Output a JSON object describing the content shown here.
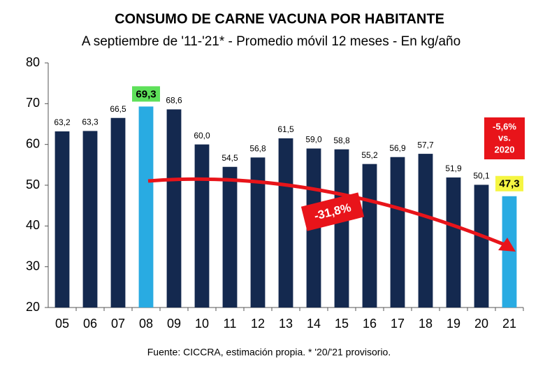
{
  "chart_data": {
    "type": "bar",
    "title": "CONSUMO DE CARNE VACUNA POR HABITANTE",
    "subtitle": "A septiembre de '11-'21* - Promedio móvil 12 meses -  En kg/año",
    "categories": [
      "05",
      "06",
      "07",
      "08",
      "09",
      "10",
      "11",
      "12",
      "13",
      "14",
      "15",
      "16",
      "17",
      "18",
      "19",
      "20",
      "21"
    ],
    "values": [
      63.2,
      63.3,
      66.5,
      69.3,
      68.6,
      60.0,
      54.5,
      56.8,
      61.5,
      59.0,
      58.8,
      55.2,
      56.9,
      57.7,
      51.9,
      50.1,
      47.3
    ],
    "value_labels": [
      "63,2",
      "63,3",
      "66,5",
      "69,3",
      "68,6",
      "60,0",
      "54,5",
      "56,8",
      "61,5",
      "59,0",
      "58,8",
      "55,2",
      "56,9",
      "57,7",
      "51,9",
      "50,1",
      "47,3"
    ],
    "colors": [
      "#14294f",
      "#14294f",
      "#14294f",
      "#29abe2",
      "#14294f",
      "#14294f",
      "#14294f",
      "#14294f",
      "#14294f",
      "#14294f",
      "#14294f",
      "#14294f",
      "#14294f",
      "#14294f",
      "#14294f",
      "#14294f",
      "#29abe2"
    ],
    "value_label_backgrounds": [
      null,
      null,
      null,
      "#5ee05a",
      null,
      null,
      null,
      null,
      null,
      null,
      null,
      null,
      null,
      null,
      null,
      null,
      "#f5f542"
    ],
    "ylim": [
      20,
      80
    ],
    "yticks": [
      20,
      30,
      40,
      50,
      60,
      70,
      80
    ],
    "grid": false,
    "annotations": {
      "trend": "-31,8%",
      "yoy": [
        "-5,6%",
        "vs.",
        "2020"
      ]
    },
    "source": "Fuente: CICCRA, estimación propia. * '20/'21 provisorio."
  }
}
